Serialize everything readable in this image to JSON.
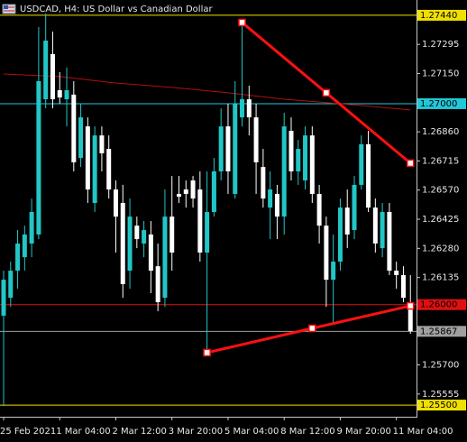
{
  "chart_data": {
    "type": "candlestick",
    "title": "USDCAD, H4:  US Dollar vs Canadian Dollar",
    "categories": [
      "25 Feb 2021",
      null,
      null,
      null,
      null,
      null,
      null,
      null,
      "1 Mar 04:00",
      null,
      null,
      null,
      null,
      null,
      null,
      null,
      "2 Mar 12:00",
      null,
      null,
      null,
      null,
      null,
      null,
      null,
      "3 Mar 20:00",
      null,
      null,
      null,
      null,
      null,
      null,
      null,
      "5 Mar 04:00",
      null,
      null,
      null,
      null,
      null,
      null,
      null,
      "8 Mar 12:00",
      null,
      null,
      null,
      null,
      null,
      null,
      null,
      "9 Mar 20:00",
      null,
      null,
      null,
      null,
      null,
      null,
      null,
      "11 Mar 04:00",
      null,
      null
    ],
    "open": [
      1.25945,
      1.26034,
      1.26169,
      1.26236,
      1.26304,
      1.26349,
      1.27022,
      1.27247,
      1.27067,
      1.27022,
      1.27045,
      1.2673,
      1.26887,
      1.26506,
      1.26842,
      1.26775,
      1.26573,
      1.26506,
      1.26169,
      1.26393,
      1.26304,
      1.26349,
      1.26191,
      1.26034,
      1.26438,
      1.26551,
      1.26573,
      1.26618,
      1.26573,
      1.26259,
      1.26461,
      1.26663,
      1.26887,
      1.26551,
      1.26932,
      1.27022,
      1.26932,
      1.26685,
      1.26483,
      1.26551,
      1.26438,
      1.26865,
      1.26663,
      1.26618,
      1.26842,
      1.26551,
      1.26393,
      1.26124,
      1.26214,
      1.26483,
      1.26371,
      1.26596,
      1.26798,
      1.26483,
      1.26281,
      1.26461,
      1.26169,
      1.26147,
      1.25998
    ],
    "high": [
      1.26169,
      1.26214,
      1.26371,
      1.26393,
      1.26528,
      1.27382,
      1.27449,
      1.27359,
      1.27157,
      1.2718,
      1.27112,
      1.27,
      1.26932,
      1.26887,
      1.26887,
      1.26842,
      1.26618,
      1.26596,
      1.26528,
      1.26438,
      1.26416,
      1.26416,
      1.26304,
      1.26573,
      1.2664,
      1.2664,
      1.26618,
      1.2664,
      1.26663,
      1.26663,
      1.2673,
      1.26977,
      1.27,
      1.27112,
      1.27404,
      1.2709,
      1.27,
      1.26775,
      1.26663,
      1.26596,
      1.26955,
      1.26932,
      1.2682,
      1.26887,
      1.26887,
      1.26596,
      1.26438,
      1.26349,
      1.26528,
      1.26573,
      1.2664,
      1.26842,
      1.26865,
      1.26528,
      1.26506,
      1.26506,
      1.26214,
      1.26191,
      1.26147
    ],
    "low": [
      1.25495,
      1.25989,
      1.26079,
      1.26169,
      1.26236,
      1.26326,
      1.26977,
      1.26977,
      1.27,
      1.26887,
      1.26663,
      1.26685,
      1.26506,
      1.26461,
      1.26663,
      1.26528,
      1.26259,
      1.26034,
      1.26079,
      1.26281,
      1.26236,
      1.26057,
      1.25967,
      1.25989,
      1.26169,
      1.26506,
      1.26483,
      1.26483,
      1.26214,
      1.25765,
      1.26438,
      1.26618,
      1.26551,
      1.26528,
      1.26887,
      1.26842,
      1.26551,
      1.26483,
      1.26326,
      1.26326,
      1.26349,
      1.26618,
      1.26596,
      1.26573,
      1.26506,
      1.26304,
      1.25989,
      1.259,
      1.26169,
      1.26281,
      1.26326,
      1.26573,
      1.26461,
      1.26259,
      1.26236,
      1.26147,
      1.26079,
      1.26012,
      1.25855
    ],
    "close": [
      1.26124,
      1.26169,
      1.26304,
      1.26349,
      1.26461,
      1.27112,
      1.27314,
      1.27022,
      1.27031,
      1.27067,
      1.26708,
      1.26932,
      1.26573,
      1.26842,
      1.26753,
      1.26573,
      1.26438,
      1.26102,
      1.26438,
      1.26326,
      1.26371,
      1.26169,
      1.26012,
      1.26438,
      1.26259,
      1.26537,
      1.26551,
      1.26528,
      1.26259,
      1.26461,
      1.26663,
      1.26887,
      1.26663,
      1.27,
      1.27022,
      1.26932,
      1.26708,
      1.26528,
      1.26573,
      1.26438,
      1.26887,
      1.26663,
      1.26775,
      1.26842,
      1.26551,
      1.26393,
      1.26124,
      1.26214,
      1.26483,
      1.26349,
      1.26596,
      1.26798,
      1.26483,
      1.26304,
      1.26461,
      1.26169,
      1.26147,
      1.26034,
      1.25868
    ],
    "up_color": "#22c6c6",
    "down_color": "#ffffff",
    "ylim": [
      1.25442,
      1.27516
    ],
    "yticks": [
      1.27295,
      {
        "value": 1.2715,
        "label": "1.27150"
      },
      {
        "value": 1.2686,
        "label": "1.26860"
      },
      1.26715,
      {
        "value": 1.2657,
        "label": "1.26570"
      },
      1.26425,
      {
        "value": 1.2628,
        "label": "1.26280"
      },
      1.26135,
      {
        "value": 1.257,
        "label": "1.25700"
      },
      1.25555
    ],
    "levels": [
      {
        "value": 1.2744,
        "label": "1.27440",
        "color": "#f0e000"
      },
      {
        "value": 1.27,
        "label": "1.27000",
        "color": "#20c8d8"
      },
      {
        "value": 1.26,
        "label": "1.26000",
        "color": "#e01010"
      },
      {
        "value": 1.25867,
        "color": "#a0a0a0"
      },
      {
        "value": 1.255,
        "label": "1.25500",
        "color": "#f0e000"
      }
    ],
    "moving_average": {
      "color": "#b01010",
      "x": [
        0,
        8,
        16,
        24,
        32,
        40,
        48,
        58
      ],
      "values": [
        1.27148,
        1.27135,
        1.27103,
        1.27081,
        1.27054,
        1.27022,
        1.27,
        1.26969
      ]
    },
    "trendlines": [
      {
        "color": "#ff1010",
        "x": [
          34,
          46,
          58
        ],
        "values": [
          1.27404,
          1.27054,
          1.26704
        ]
      },
      {
        "color": "#ff1010",
        "x": [
          29,
          44,
          58
        ],
        "values": [
          1.25761,
          1.25882,
          1.25994
        ]
      }
    ]
  }
}
